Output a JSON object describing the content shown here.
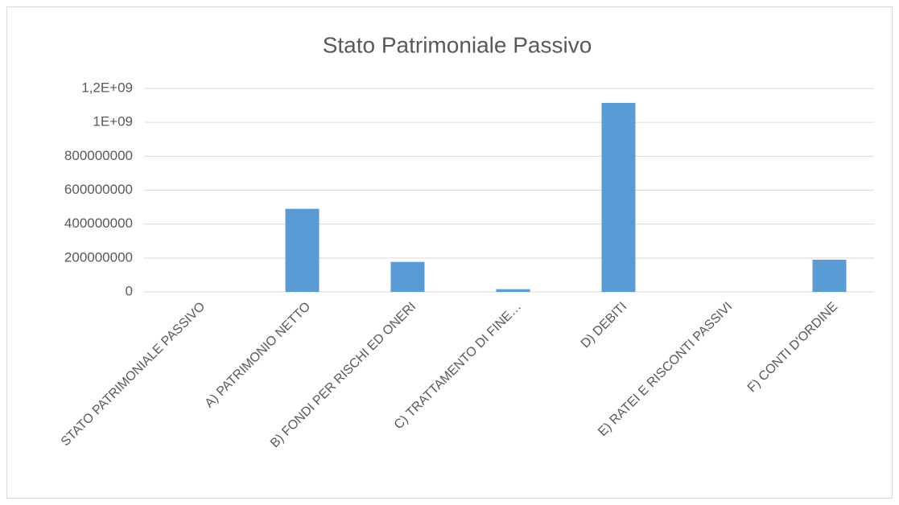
{
  "chart_data": {
    "type": "bar",
    "title": "Stato Patrimoniale Passivo",
    "categories": [
      "STATO PATRIMONIALE PASSIVO",
      "A) PATRIMONIO NETTO",
      "B) FONDI PER RISCHI ED ONERI",
      "C) TRATTAMENTO DI FINE…",
      "D) DEBITI",
      "E) RATEI E RISCONTI PASSIVI",
      "F) CONTI D'ORDINE"
    ],
    "values": [
      0,
      490000000,
      177000000,
      16000000,
      1115000000,
      0,
      190000000
    ],
    "color": "#5b9bd5",
    "ylim": [
      0,
      1200000000
    ],
    "yticks": [
      0,
      200000000,
      400000000,
      600000000,
      800000000,
      {
        "value": 1000000000,
        "label": "1E+09"
      },
      {
        "value": 1200000000,
        "label": "1,2E+09"
      }
    ],
    "grid": true
  }
}
